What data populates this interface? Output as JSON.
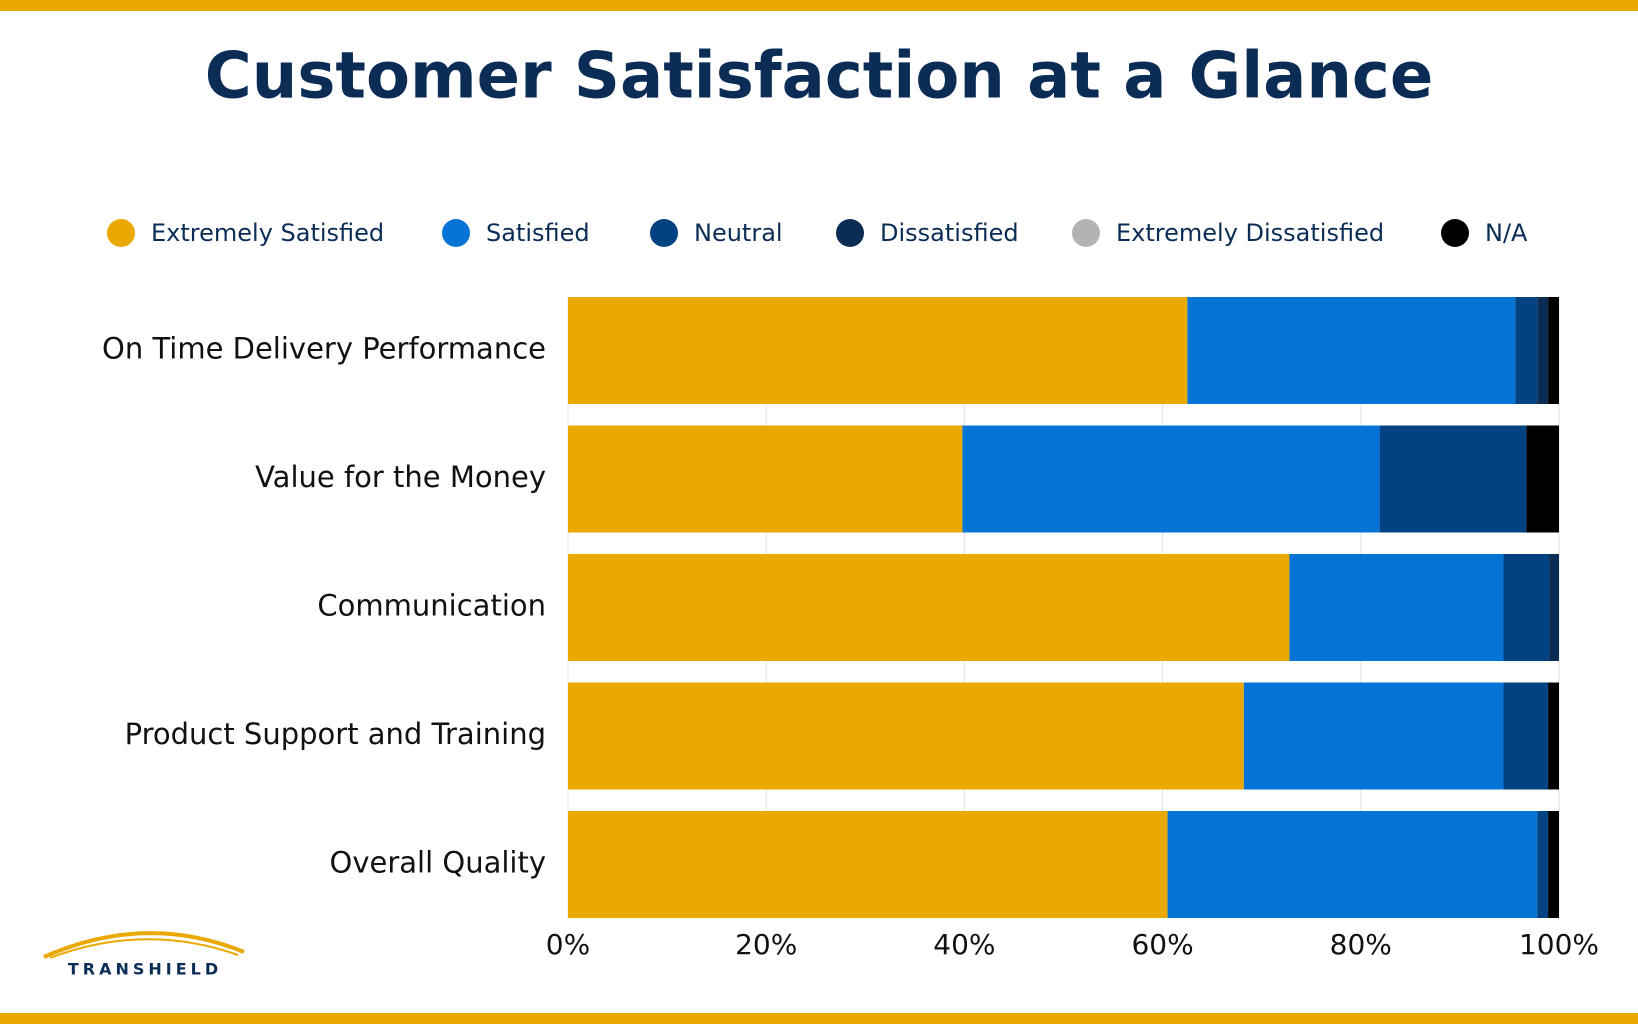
{
  "chart_data": {
    "type": "stacked-bar-horizontal",
    "title": "Customer Satisfaction at a Glance",
    "categories": [
      "On Time Delivery Performance",
      "Value for the Money",
      "Communication",
      "Product Support and Training",
      "Overall Quality"
    ],
    "series": [
      {
        "name": "Extremely Satisfied",
        "color": "#e9a900",
        "values": [
          62.5,
          39.8,
          72.8,
          68.2,
          60.5
        ]
      },
      {
        "name": "Satisfied",
        "color": "#0574d6",
        "values": [
          33.1,
          42.1,
          21.6,
          26.2,
          37.3
        ]
      },
      {
        "name": "Neutral",
        "color": "#004282",
        "values": [
          2.2,
          14.8,
          4.6,
          4.5,
          1.1
        ]
      },
      {
        "name": "Dissatisfied",
        "color": "#0b2d55",
        "values": [
          1.1,
          0,
          1.0,
          0,
          0
        ]
      },
      {
        "name": "Extremely Dissatisfied",
        "color": "#b3b3b3",
        "values": [
          0,
          0,
          0,
          0,
          0
        ]
      },
      {
        "name": "N/A",
        "color": "#000000",
        "values": [
          1.1,
          3.3,
          0,
          1.1,
          1.1
        ]
      }
    ],
    "xlim": [
      0,
      100
    ],
    "xticks": [
      {
        "value": 0,
        "label": "0%"
      },
      {
        "value": 20,
        "label": "20%"
      },
      {
        "value": 40,
        "label": "40%"
      },
      {
        "value": 60,
        "label": "60%"
      },
      {
        "value": 80,
        "label": "80%"
      },
      {
        "value": 100,
        "label": "100%"
      }
    ],
    "grid": true,
    "legend": "top"
  },
  "logo": "TRANSHIELD"
}
